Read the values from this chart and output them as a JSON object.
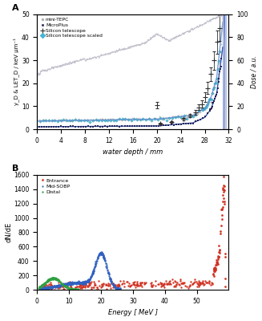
{
  "panel_A": {
    "xlabel": "water depth / mm",
    "ylabel_left": "y_D & LET_D / keV μm⁻¹",
    "ylabel_right": "Dose / a.u.",
    "xlim": [
      0,
      32
    ],
    "ylim_left": [
      0,
      50
    ],
    "ylim_right": [
      0,
      100
    ],
    "xticks": [
      0,
      4,
      8,
      12,
      16,
      20,
      24,
      28,
      32
    ],
    "vline_x": 31.3,
    "vline_color": "#4060cc",
    "dose_color": "#c0c0cc",
    "tepc_color": "#b0b0b0",
    "micro_color": "#202050",
    "sil_color": "#303030",
    "sil_scaled_color": "#40b8d8",
    "line_dark_blue": "#2040a0",
    "line_light_blue": "#6090d0",
    "legend_labels": [
      "mini-TEPC",
      "MicroPlus",
      "Silicon telescope",
      "Silicon telescope scaled"
    ]
  },
  "panel_B": {
    "xlabel": "Energy [ MeV ]",
    "ylabel": "dN/dE",
    "xlim": [
      0,
      60
    ],
    "ylim": [
      0,
      1600
    ],
    "yticks": [
      0,
      200,
      400,
      600,
      800,
      1000,
      1200,
      1400,
      1600
    ],
    "xticks": [
      0,
      10,
      20,
      30,
      40,
      50
    ],
    "legend_labels": [
      "Entrance",
      "Mid-SOBP",
      "Distal"
    ],
    "colors": [
      "#d03020",
      "#3060c0",
      "#30a040"
    ]
  }
}
